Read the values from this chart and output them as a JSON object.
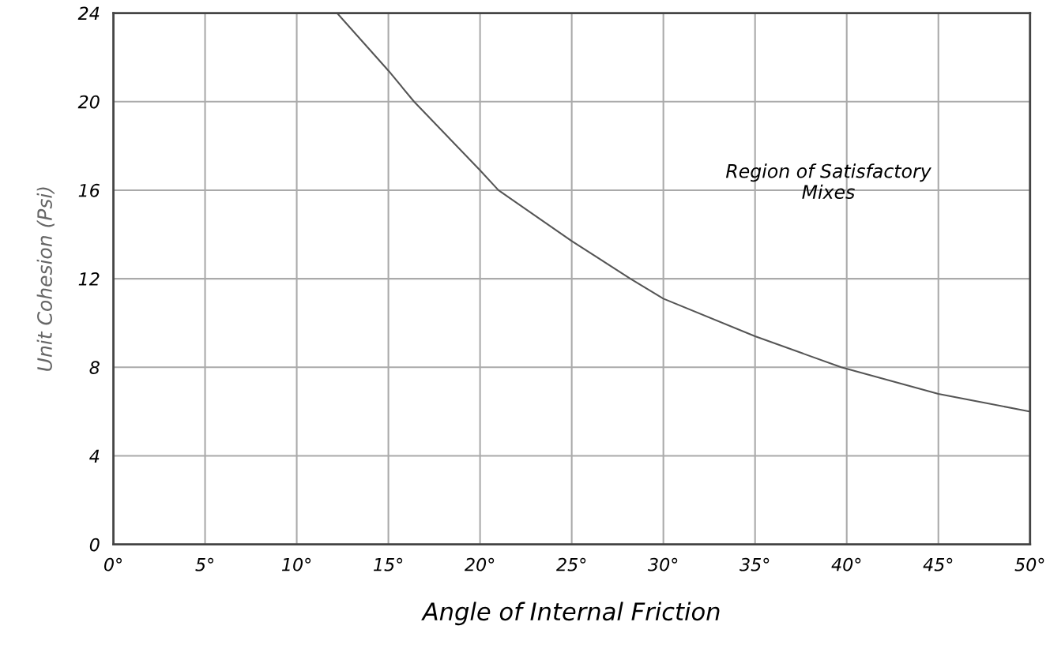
{
  "chart_data": {
    "type": "line",
    "xlabel": "Angle of Internal Friction",
    "ylabel": "Unit Cohesion (Psi)",
    "x": [
      12.2,
      15,
      16.4,
      20,
      21,
      25,
      28.2,
      30,
      35,
      39.7,
      45,
      50
    ],
    "series": [
      {
        "color": "#555555",
        "values": [
          24,
          21.4,
          20,
          16.9,
          16,
          13.7,
          12,
          11.1,
          9.4,
          8,
          6.8,
          6.0
        ]
      }
    ],
    "xlim": [
      0,
      50
    ],
    "ylim": [
      0,
      24
    ],
    "xticks": [
      {
        "value": 0,
        "label": "0°"
      },
      {
        "value": 5,
        "label": "5°"
      },
      {
        "value": 10,
        "label": "10°"
      },
      {
        "value": 15,
        "label": "15°"
      },
      {
        "value": 20,
        "label": "20°"
      },
      {
        "value": 25,
        "label": "25°"
      },
      {
        "value": 30,
        "label": "30°"
      },
      {
        "value": 35,
        "label": "35°"
      },
      {
        "value": 40,
        "label": "40°"
      },
      {
        "value": 45,
        "label": "45°"
      },
      {
        "value": 50,
        "label": "50°"
      }
    ],
    "yticks": [
      0,
      4,
      8,
      12,
      16,
      20,
      24
    ],
    "annotations": [
      "Region of Satisfactory\nMixes"
    ],
    "grid": true,
    "legend": false,
    "marker": "none",
    "line_style": "solid"
  }
}
